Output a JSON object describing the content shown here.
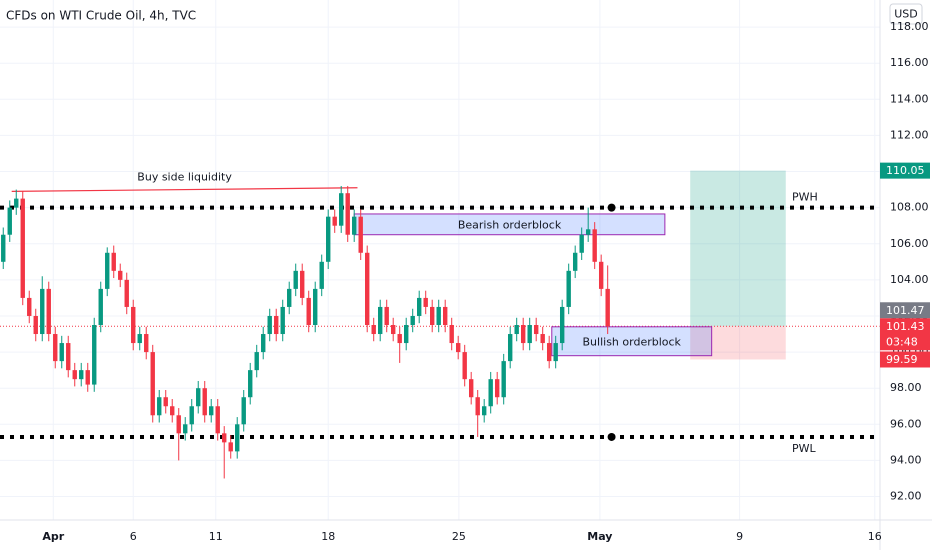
{
  "chart_data": {
    "type": "candlestick",
    "title": "CFDs on WTI Crude Oil, 4h, TVC",
    "currency": "USD",
    "up_color": "#089981",
    "down_color": "#f23645",
    "grid": true,
    "xlim": [
      -0.5,
      134.9
    ],
    "ylim": [
      90.7,
      119.5
    ],
    "xticks": [
      {
        "value": 7.7,
        "label": "Apr"
      },
      {
        "value": 20,
        "label": "6"
      },
      {
        "value": 32.7,
        "label": "11"
      },
      {
        "value": 50,
        "label": "18"
      },
      {
        "value": 70.1,
        "label": "25"
      },
      {
        "value": 91.8,
        "label": "May"
      },
      {
        "value": 113.3,
        "label": "9"
      },
      {
        "value": 134.1,
        "label": "16"
      }
    ],
    "yticks": [
      {
        "value": 92,
        "label": "92.00"
      },
      {
        "value": 94,
        "label": "94.00"
      },
      {
        "value": 96,
        "label": "96.00"
      },
      {
        "value": 98,
        "label": "98.00"
      },
      {
        "value": 100,
        "label": "100.00"
      },
      {
        "value": 102,
        "label": "102.00"
      },
      {
        "value": 104,
        "label": "104.00"
      },
      {
        "value": 106,
        "label": "106.00"
      },
      {
        "value": 108,
        "label": "108.00"
      },
      {
        "value": 110,
        "label": "110.00"
      },
      {
        "value": 112,
        "label": "112.00"
      },
      {
        "value": 114,
        "label": "114.00"
      },
      {
        "value": 116,
        "label": "116.00"
      },
      {
        "value": 118,
        "label": "118.00"
      }
    ],
    "open": [
      105.0,
      106.5,
      108.0,
      108.5,
      103.0,
      102.0,
      101.0,
      103.5,
      101.0,
      99.5,
      100.5,
      99.0,
      98.5,
      99.0,
      98.2,
      101.5,
      103.5,
      105.5,
      104.5,
      104.0,
      102.5,
      100.5,
      101.0,
      100.0,
      96.5,
      97.5,
      97.0,
      96.5,
      95.5,
      96.0,
      97.0,
      98.0,
      96.5,
      97.0,
      95.5,
      95.0,
      94.5,
      96.0,
      97.5,
      99.0,
      100.0,
      101.0,
      102.0,
      101.0,
      102.5,
      103.5,
      104.5,
      103.0,
      101.5,
      103.5,
      105.0,
      107.5,
      107.0,
      108.8,
      106.5,
      107.5,
      105.5,
      101.5,
      101.0,
      102.5,
      101.5,
      101.0,
      100.5,
      101.5,
      102.0,
      103.0,
      102.5,
      101.5,
      102.5,
      101.5,
      100.5,
      100.0,
      98.5,
      97.5,
      96.5,
      97.0,
      98.5,
      97.5,
      99.5,
      101.0,
      101.5,
      100.5,
      101.5,
      101.0,
      100.5,
      99.5,
      100.5,
      102.5,
      104.5,
      105.5,
      106.5,
      106.8,
      105.0,
      103.5
    ],
    "high": [
      106.9,
      108.4,
      109.0,
      108.9,
      103.4,
      102.4,
      104.2,
      103.9,
      101.4,
      100.9,
      100.9,
      99.4,
      99.4,
      99.4,
      101.9,
      103.9,
      105.8,
      105.9,
      104.9,
      104.4,
      102.9,
      101.4,
      101.4,
      100.4,
      97.9,
      97.9,
      97.4,
      96.9,
      96.4,
      97.4,
      98.4,
      98.4,
      97.4,
      97.4,
      95.9,
      95.4,
      96.4,
      97.9,
      99.4,
      100.4,
      101.4,
      102.4,
      102.4,
      102.9,
      103.9,
      104.9,
      104.9,
      103.4,
      103.9,
      105.4,
      107.9,
      107.9,
      109.2,
      109.2,
      107.9,
      107.9,
      105.9,
      101.9,
      102.9,
      102.9,
      101.9,
      101.4,
      101.9,
      102.4,
      103.4,
      103.4,
      102.9,
      102.9,
      102.9,
      101.9,
      100.9,
      100.4,
      98.9,
      97.9,
      97.4,
      98.9,
      98.9,
      99.9,
      101.4,
      101.9,
      101.9,
      101.9,
      101.9,
      101.4,
      100.9,
      100.9,
      102.9,
      104.9,
      105.9,
      106.9,
      108.0,
      107.2,
      105.4,
      104.8
    ],
    "low": [
      104.6,
      106.1,
      107.6,
      102.6,
      101.6,
      100.6,
      100.6,
      100.6,
      99.1,
      99.1,
      98.6,
      98.1,
      98.1,
      97.8,
      97.8,
      101.1,
      103.1,
      104.1,
      103.6,
      102.1,
      100.1,
      100.1,
      99.6,
      96.1,
      96.1,
      96.6,
      96.1,
      94.0,
      95.1,
      95.6,
      96.6,
      96.1,
      96.1,
      95.1,
      93.0,
      94.1,
      94.1,
      95.6,
      97.1,
      98.6,
      99.6,
      100.6,
      100.6,
      100.6,
      102.1,
      103.1,
      102.6,
      101.1,
      101.1,
      103.1,
      104.6,
      106.6,
      106.6,
      106.1,
      106.1,
      105.1,
      101.1,
      100.6,
      100.6,
      101.1,
      100.6,
      99.4,
      100.1,
      101.1,
      101.6,
      102.1,
      101.1,
      101.1,
      101.1,
      100.1,
      99.6,
      98.1,
      97.1,
      95.3,
      96.1,
      96.6,
      97.1,
      97.1,
      99.1,
      100.6,
      100.1,
      100.1,
      100.6,
      100.1,
      99.1,
      99.1,
      100.1,
      102.1,
      104.1,
      105.1,
      106.1,
      104.6,
      103.1,
      101.0
    ],
    "close": [
      106.5,
      108.0,
      108.5,
      103.0,
      102.0,
      101.0,
      103.5,
      101.0,
      99.5,
      100.5,
      99.0,
      98.5,
      99.0,
      98.2,
      101.5,
      103.5,
      105.5,
      104.5,
      104.0,
      102.5,
      100.5,
      101.0,
      100.0,
      96.5,
      97.5,
      97.0,
      96.5,
      95.5,
      96.0,
      97.0,
      98.0,
      96.5,
      97.0,
      95.5,
      95.0,
      94.5,
      96.0,
      97.5,
      99.0,
      100.0,
      101.0,
      102.0,
      101.0,
      102.5,
      103.5,
      104.5,
      103.0,
      101.5,
      103.5,
      105.0,
      107.5,
      107.0,
      108.8,
      106.5,
      107.5,
      105.5,
      101.5,
      101.0,
      102.5,
      101.5,
      101.0,
      100.5,
      101.5,
      102.0,
      103.0,
      102.5,
      101.5,
      102.5,
      101.5,
      100.5,
      100.0,
      98.5,
      97.5,
      96.5,
      97.0,
      98.5,
      97.5,
      99.5,
      101.0,
      101.5,
      100.5,
      101.5,
      101.0,
      100.5,
      99.5,
      100.5,
      102.5,
      104.5,
      105.5,
      106.5,
      106.8,
      105.0,
      103.5,
      101.43
    ],
    "levels": [
      {
        "label": "PWH",
        "value": 108.0,
        "dot_x": 93.6
      },
      {
        "label": "PWL",
        "value": 95.3,
        "dot_x": 93.6
      }
    ],
    "trendline": {
      "label": "Buy side liquidity",
      "x": [
        1.3,
        54.5
      ],
      "y": [
        108.9,
        109.1
      ],
      "color": "#f23645"
    },
    "zones": [
      {
        "label": "Bearish orderblock",
        "x": [
          54,
          101.8
        ],
        "y": [
          106.5,
          107.65
        ],
        "color": "#9c27b0"
      },
      {
        "label": "Bullish orderblock",
        "x": [
          84.4,
          109
        ],
        "y": [
          99.8,
          101.4
        ],
        "color": "#9c27b0"
      }
    ],
    "position": {
      "x": [
        105.7,
        120.4
      ],
      "entry": 101.43,
      "target": 110.05,
      "stop": 99.59
    },
    "last_price": {
      "value": 101.43,
      "countdown": "03:48",
      "color": "#f23645"
    },
    "price_badges": [
      {
        "value": 110.05,
        "color": "#089981"
      },
      {
        "value": 101.47,
        "color": "#787b86"
      },
      {
        "value": 99.59,
        "color": "#f23645"
      }
    ]
  }
}
